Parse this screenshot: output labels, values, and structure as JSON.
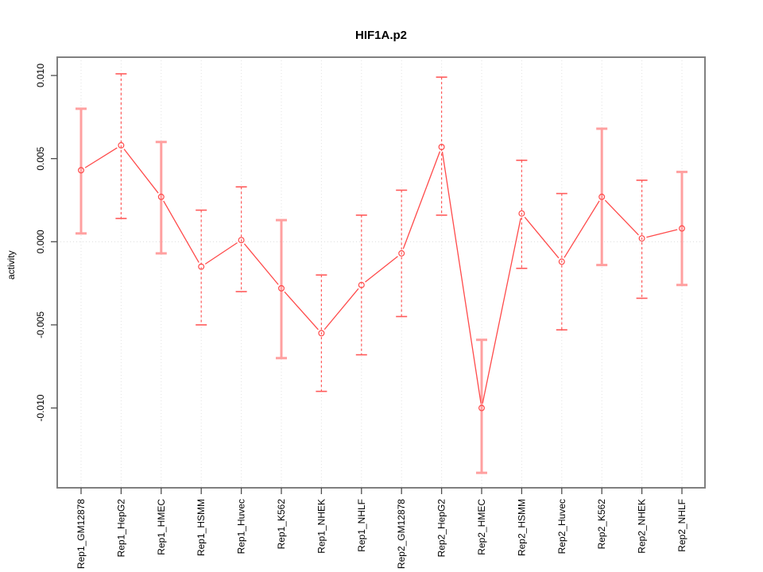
{
  "chart_data": {
    "type": "scatter",
    "title": "HIF1A.p2",
    "xlabel": "",
    "ylabel": "activity",
    "categories": [
      "Rep1_GM12878",
      "Rep1_HepG2",
      "Rep1_HMEC",
      "Rep1_HSMM",
      "Rep1_Huvec",
      "Rep1_K562",
      "Rep1_NHEK",
      "Rep1_NHLF",
      "Rep2_GM12878",
      "Rep2_HepG2",
      "Rep2_HMEC",
      "Rep2_HSMM",
      "Rep2_Huvec",
      "Rep2_K562",
      "Rep2_NHEK",
      "Rep2_NHLF"
    ],
    "series": [
      {
        "name": "activity",
        "values": [
          0.0043,
          0.0058,
          0.0027,
          -0.0015,
          0.0001,
          -0.0028,
          -0.0055,
          -0.0026,
          -0.0007,
          0.0057,
          -0.01,
          0.0017,
          -0.0012,
          0.0027,
          0.0002,
          0.0008
        ],
        "error_high": [
          0.008,
          0.0101,
          0.006,
          0.0019,
          0.0033,
          0.0013,
          -0.002,
          0.0016,
          0.0031,
          0.0099,
          -0.0059,
          0.0049,
          0.0029,
          0.0068,
          0.0037,
          0.0042
        ],
        "error_low": [
          0.0005,
          0.0014,
          -0.0007,
          -0.005,
          -0.003,
          -0.007,
          -0.009,
          -0.0068,
          -0.0045,
          0.0016,
          -0.0139,
          -0.0016,
          -0.0053,
          -0.0014,
          -0.0034,
          -0.0026
        ]
      }
    ],
    "error_bar_styles": [
      "solid",
      "dashed",
      "solid",
      "dashed",
      "dashed",
      "solid",
      "dashed",
      "dashed",
      "dashed",
      "dashed",
      "solid",
      "dashed",
      "dashed",
      "solid",
      "dashed",
      "solid"
    ],
    "yticks": {
      "values": [
        0.01,
        0.005,
        0.0,
        -0.005,
        -0.01
      ],
      "labels": [
        "0.010",
        "0.005",
        "0.000",
        "-0.005",
        "-0.010"
      ]
    },
    "ylim": [
      -0.0148,
      0.0111
    ],
    "grid": {
      "vertical_per_category": true,
      "zero_line": true,
      "style": "dotted"
    },
    "legend": "none",
    "marker": "open-circle",
    "colors": {
      "series": "#FF4A4A",
      "error_bar_solid": "#FFA0A0",
      "error_bar_dashed": "#FF5A5A",
      "grid": "#E2E2E2",
      "zero_line": "#DCDCDC",
      "frame": "#808080",
      "tick": "#4D4D4D",
      "text": "#000000",
      "background": "#FFFFFF"
    }
  }
}
